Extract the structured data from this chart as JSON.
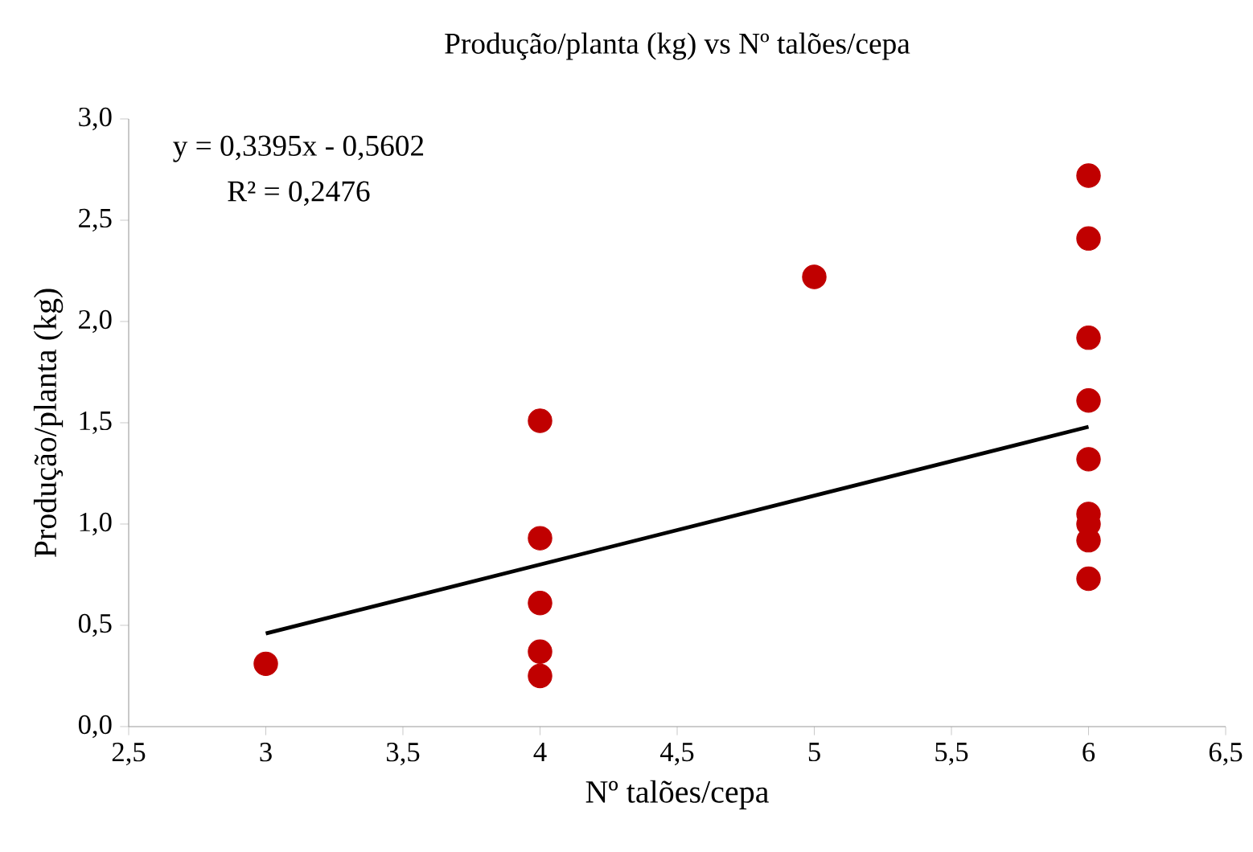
{
  "chart_data": {
    "type": "scatter",
    "title": "Produção/planta (kg) vs Nº talões/cepa",
    "xlabel": "Nº talões/cepa",
    "ylabel": "Produção/planta (kg)",
    "annotations": [
      "y = 0,3395x - 0,5602",
      "R² = 0,2476"
    ],
    "xlim": [
      2.5,
      6.5
    ],
    "ylim": [
      0,
      3
    ],
    "xticks": [
      {
        "value": 2.5,
        "label": "2,5"
      },
      {
        "value": 3,
        "label": "3"
      },
      {
        "value": 3.5,
        "label": "3,5"
      },
      {
        "value": 4,
        "label": "4"
      },
      {
        "value": 4.5,
        "label": "4,5"
      },
      {
        "value": 5,
        "label": "5"
      },
      {
        "value": 5.5,
        "label": "5,5"
      },
      {
        "value": 6,
        "label": "6"
      },
      {
        "value": 6.5,
        "label": "6,5"
      }
    ],
    "yticks": [
      {
        "value": 0,
        "label": "0,0"
      },
      {
        "value": 0.5,
        "label": "0,5"
      },
      {
        "value": 1,
        "label": "1,0"
      },
      {
        "value": 1.5,
        "label": "1,5"
      },
      {
        "value": 2,
        "label": "2,0"
      },
      {
        "value": 2.5,
        "label": "2,5"
      },
      {
        "value": 3,
        "label": "3,0"
      }
    ],
    "grid": false,
    "series": [
      {
        "marker": "circle",
        "color": "#c00000",
        "x": [
          3,
          4,
          4,
          4,
          4,
          4,
          5,
          6,
          6,
          6,
          6,
          6,
          6,
          6,
          6,
          6
        ],
        "values": [
          0.31,
          1.51,
          0.93,
          0.61,
          0.37,
          0.25,
          2.22,
          2.72,
          2.41,
          1.92,
          1.61,
          1.32,
          1.05,
          1.0,
          0.92,
          0.73
        ]
      },
      {
        "type": "line",
        "color": "#000000",
        "line_style": "solid",
        "marker": "none",
        "x": [
          3,
          6
        ],
        "values": [
          0.46,
          1.48
        ]
      }
    ]
  }
}
